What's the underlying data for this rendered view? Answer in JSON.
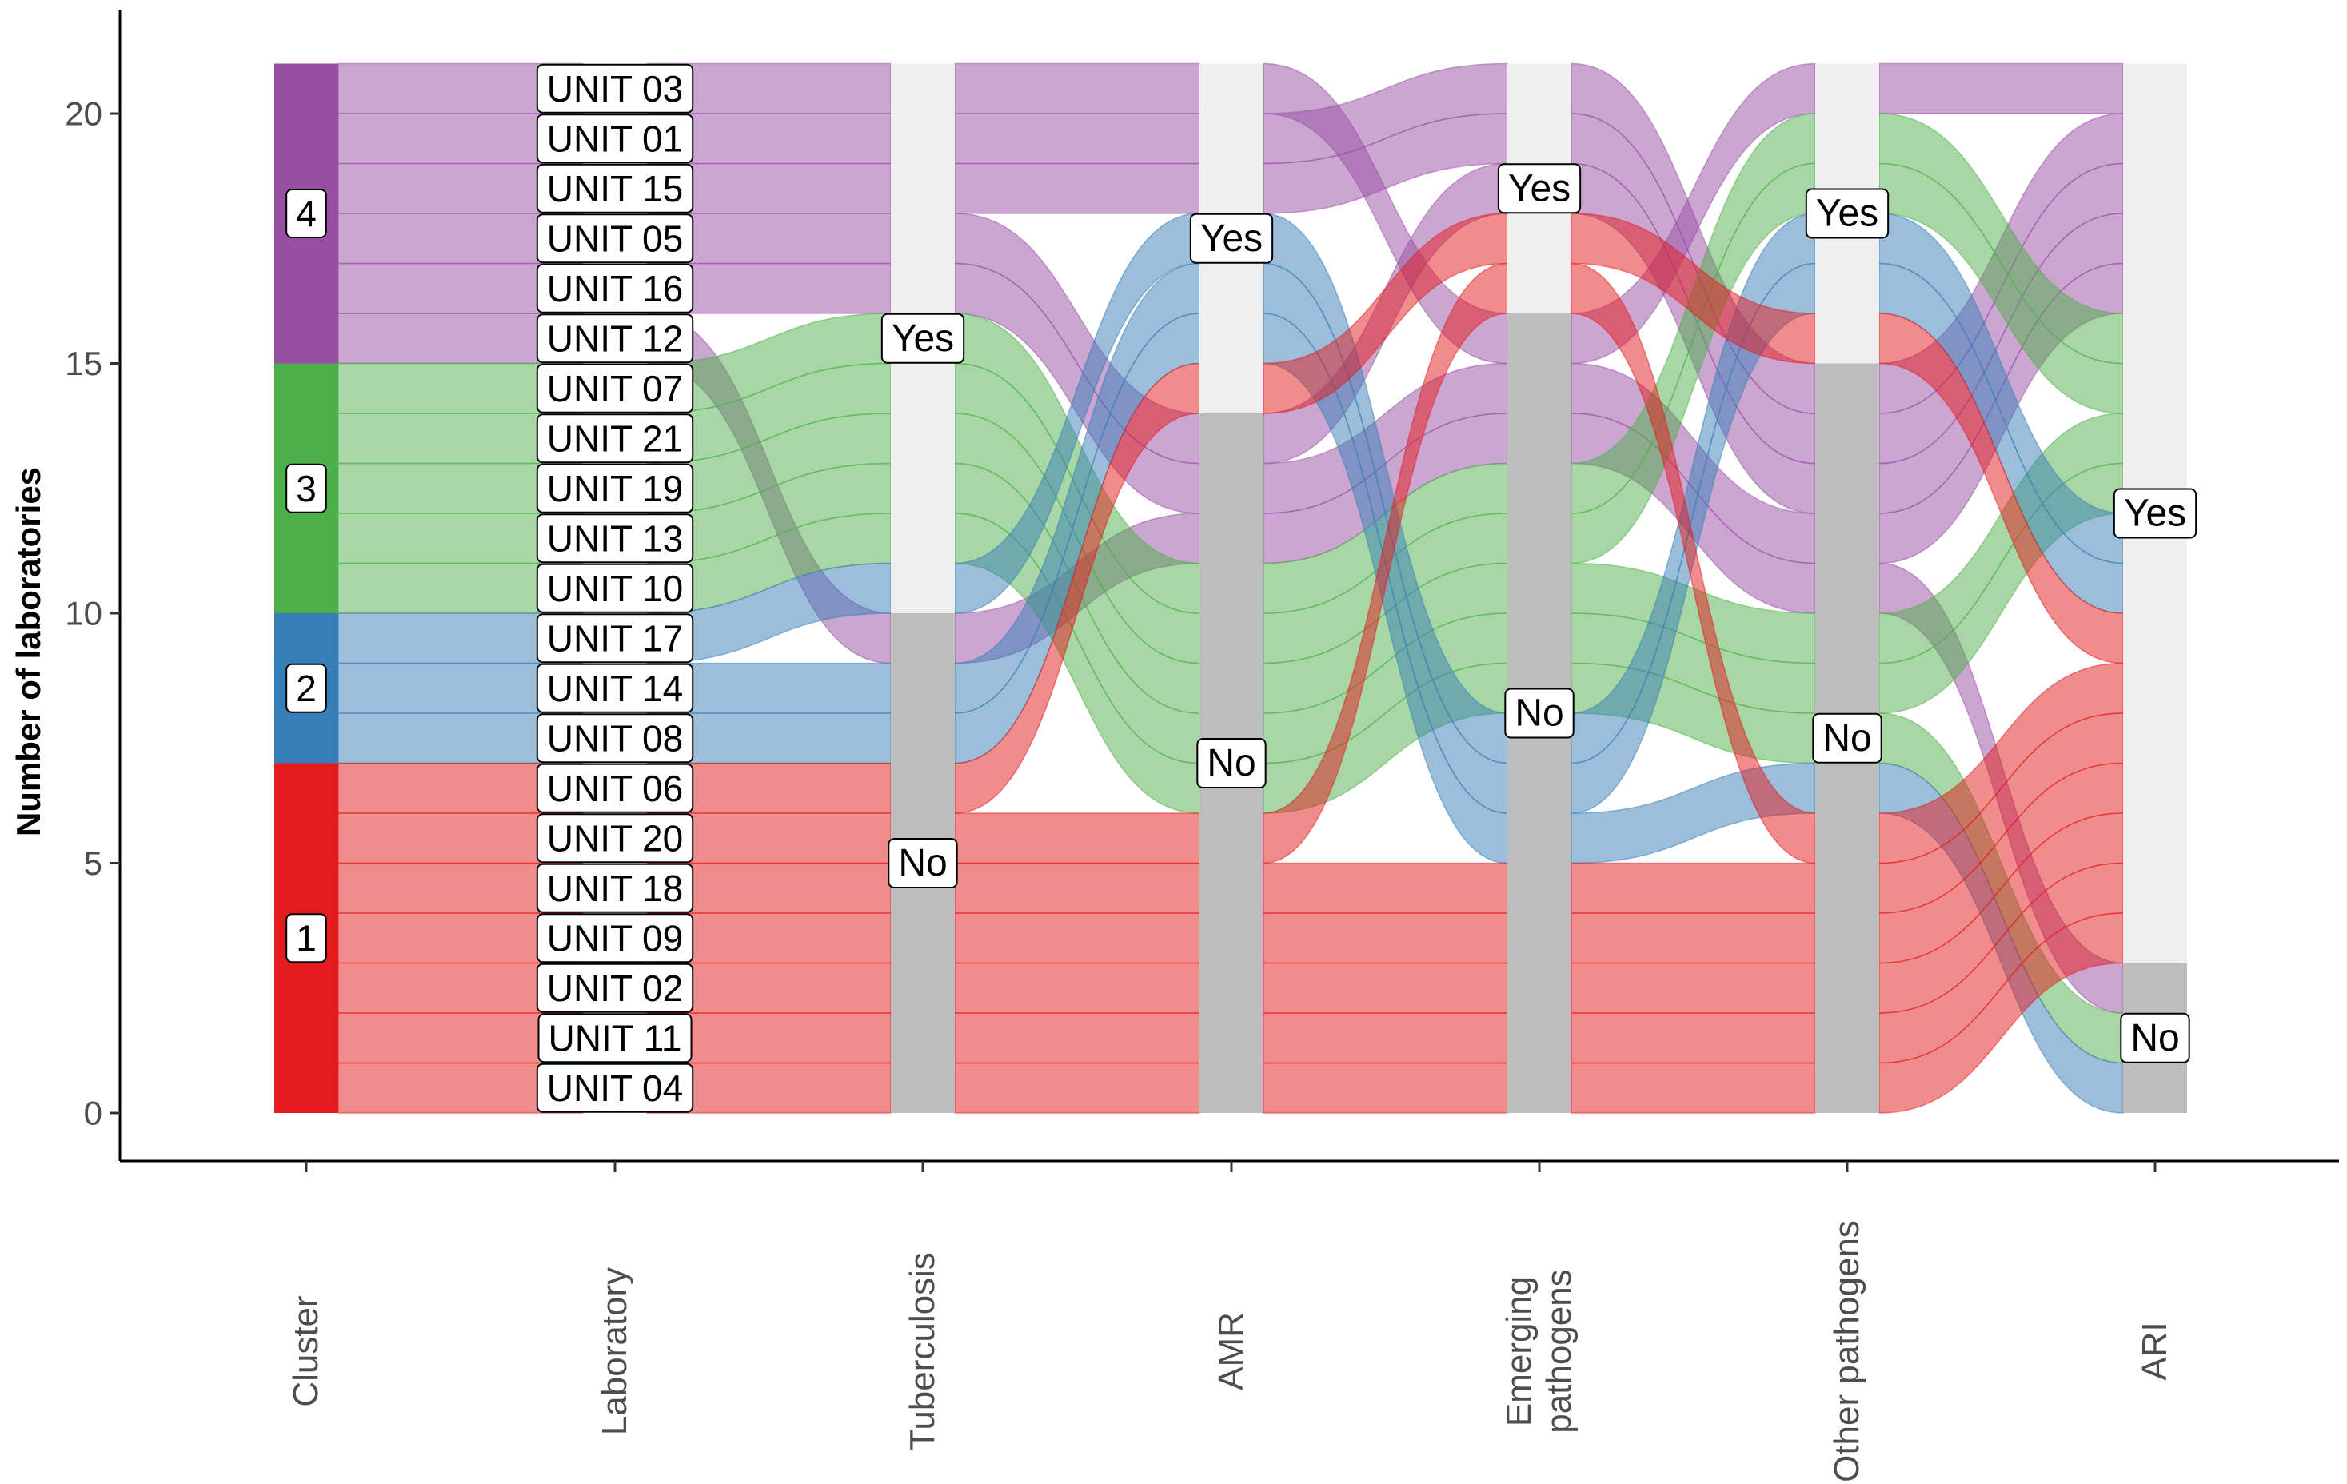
{
  "chart_data": {
    "type": "alluvial",
    "ylabel": "Number of laboratories",
    "ylim": [
      0,
      21
    ],
    "yticks": [
      0,
      5,
      10,
      15,
      20
    ],
    "axes": [
      "Cluster",
      "Laboratory",
      "Tuberculosis",
      "AMR",
      "Emerging\npathogens",
      "Other pathogens",
      "ARI"
    ],
    "cluster_colors": {
      "1": "#e41a1c",
      "2": "#377eb8",
      "3": "#4daf4a",
      "4": "#984ea3"
    },
    "answer_colors": {
      "Yes": "#efefef",
      "No": "#bdbdbd"
    },
    "clusters": [
      "4",
      "3",
      "2",
      "1"
    ],
    "laboratories": [
      {
        "unit": "UNIT 03",
        "cluster": "4",
        "tb": "Yes",
        "amr": "Yes",
        "emerging": "No",
        "other": "Yes",
        "ari": "Yes"
      },
      {
        "unit": "UNIT 01",
        "cluster": "4",
        "tb": "Yes",
        "amr": "Yes",
        "emerging": "Yes",
        "other": "No",
        "ari": "Yes"
      },
      {
        "unit": "UNIT 15",
        "cluster": "4",
        "tb": "Yes",
        "amr": "Yes",
        "emerging": "Yes",
        "other": "No",
        "ari": "Yes"
      },
      {
        "unit": "UNIT 05",
        "cluster": "4",
        "tb": "Yes",
        "amr": "No",
        "emerging": "Yes",
        "other": "No",
        "ari": "Yes"
      },
      {
        "unit": "UNIT 16",
        "cluster": "4",
        "tb": "Yes",
        "amr": "No",
        "emerging": "No",
        "other": "No",
        "ari": "Yes"
      },
      {
        "unit": "UNIT 12",
        "cluster": "4",
        "tb": "No",
        "amr": "No",
        "emerging": "No",
        "other": "No",
        "ari": "No"
      },
      {
        "unit": "UNIT 07",
        "cluster": "3",
        "tb": "Yes",
        "amr": "No",
        "emerging": "No",
        "other": "Yes",
        "ari": "Yes"
      },
      {
        "unit": "UNIT 21",
        "cluster": "3",
        "tb": "Yes",
        "amr": "No",
        "emerging": "No",
        "other": "Yes",
        "ari": "Yes"
      },
      {
        "unit": "UNIT 19",
        "cluster": "3",
        "tb": "Yes",
        "amr": "No",
        "emerging": "No",
        "other": "No",
        "ari": "Yes"
      },
      {
        "unit": "UNIT 13",
        "cluster": "3",
        "tb": "Yes",
        "amr": "No",
        "emerging": "No",
        "other": "No",
        "ari": "Yes"
      },
      {
        "unit": "UNIT 10",
        "cluster": "3",
        "tb": "Yes",
        "amr": "No",
        "emerging": "No",
        "other": "No",
        "ari": "No"
      },
      {
        "unit": "UNIT 17",
        "cluster": "2",
        "tb": "Yes",
        "amr": "Yes",
        "emerging": "No",
        "other": "Yes",
        "ari": "Yes"
      },
      {
        "unit": "UNIT 14",
        "cluster": "2",
        "tb": "No",
        "amr": "Yes",
        "emerging": "No",
        "other": "Yes",
        "ari": "Yes"
      },
      {
        "unit": "UNIT 08",
        "cluster": "2",
        "tb": "No",
        "amr": "Yes",
        "emerging": "No",
        "other": "No",
        "ari": "No"
      },
      {
        "unit": "UNIT 06",
        "cluster": "1",
        "tb": "No",
        "amr": "Yes",
        "emerging": "Yes",
        "other": "Yes",
        "ari": "Yes"
      },
      {
        "unit": "UNIT 20",
        "cluster": "1",
        "tb": "No",
        "amr": "No",
        "emerging": "Yes",
        "other": "No",
        "ari": "Yes"
      },
      {
        "unit": "UNIT 18",
        "cluster": "1",
        "tb": "No",
        "amr": "No",
        "emerging": "No",
        "other": "No",
        "ari": "Yes"
      },
      {
        "unit": "UNIT 09",
        "cluster": "1",
        "tb": "No",
        "amr": "No",
        "emerging": "No",
        "other": "No",
        "ari": "Yes"
      },
      {
        "unit": "UNIT 02",
        "cluster": "1",
        "tb": "No",
        "amr": "No",
        "emerging": "No",
        "other": "No",
        "ari": "Yes"
      },
      {
        "unit": "UNIT 11",
        "cluster": "1",
        "tb": "No",
        "amr": "No",
        "emerging": "No",
        "other": "No",
        "ari": "Yes"
      },
      {
        "unit": "UNIT 04",
        "cluster": "1",
        "tb": "No",
        "amr": "No",
        "emerging": "No",
        "other": "No",
        "ari": "Yes"
      }
    ]
  }
}
